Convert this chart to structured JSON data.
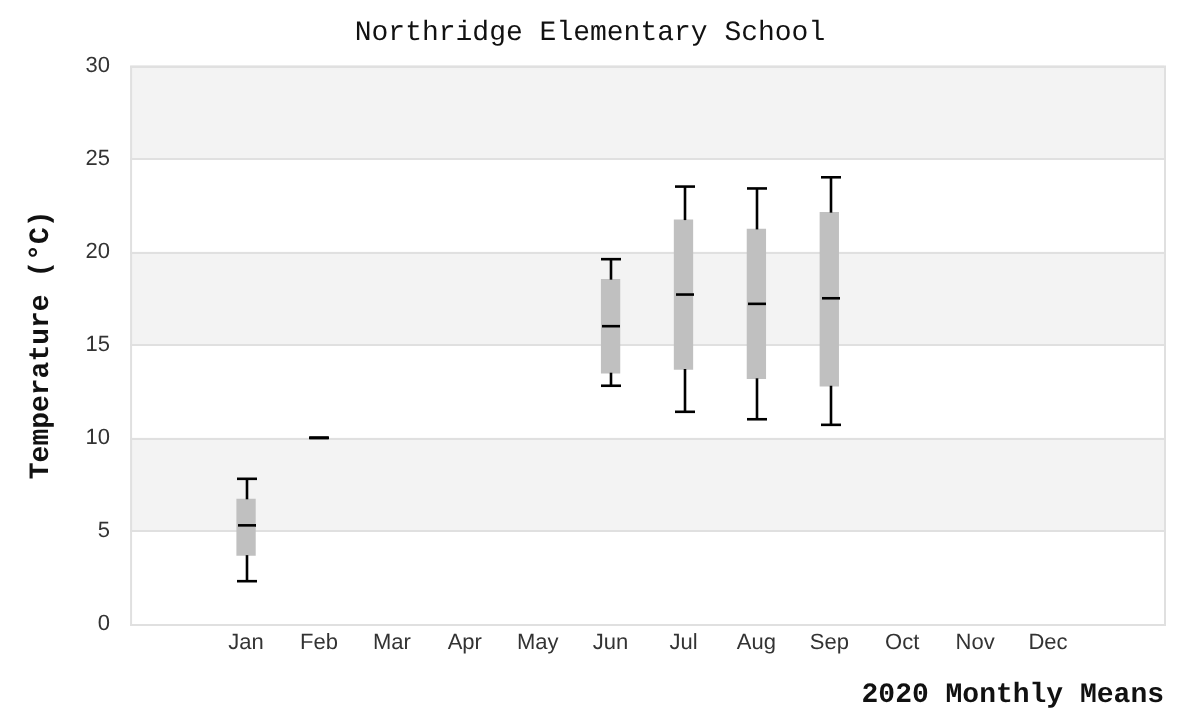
{
  "chart_data": {
    "type": "box",
    "title": "Northridge Elementary School",
    "xlabel": "2020 Monthly Means",
    "ylabel": "Temperature (°C)",
    "categories": [
      "Jan",
      "Feb",
      "Mar",
      "Apr",
      "May",
      "Jun",
      "Jul",
      "Aug",
      "Sep",
      "Oct",
      "Nov",
      "Dec"
    ],
    "boxes": [
      {
        "low": 2.3,
        "q1": 3.7,
        "median": 5.3,
        "q3": 6.7,
        "high": 7.8
      },
      {
        "low": 10,
        "q1": 10,
        "median": 10,
        "q3": 10,
        "high": 10
      },
      null,
      null,
      null,
      {
        "low": 12.8,
        "q1": 13.5,
        "median": 16,
        "q3": 18.5,
        "high": 19.6
      },
      {
        "low": 11.4,
        "q1": 13.7,
        "median": 17.7,
        "q3": 21.7,
        "high": 23.5
      },
      {
        "low": 11,
        "q1": 13.2,
        "median": 17.2,
        "q3": 21.2,
        "high": 23.4
      },
      {
        "low": 10.7,
        "q1": 12.8,
        "median": 17.5,
        "q3": 22.1,
        "high": 24
      },
      null,
      null,
      null
    ],
    "color": "#c0c0c0",
    "ylim": [
      0,
      30
    ],
    "yticks": [
      0,
      5,
      10,
      15,
      20,
      25,
      30
    ],
    "grid": "y",
    "legend": false
  }
}
